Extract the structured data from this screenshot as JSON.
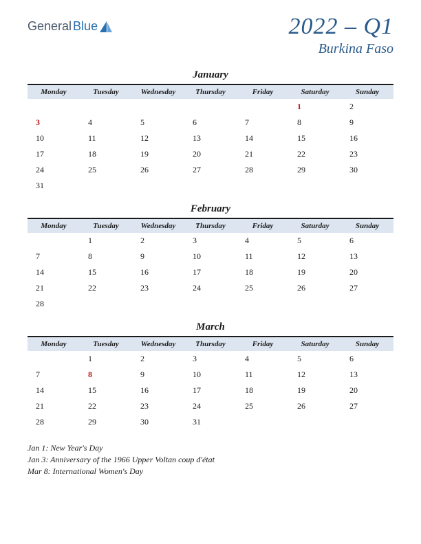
{
  "logo": {
    "general": "General",
    "blue": "Blue"
  },
  "title": {
    "quarter": "2022 – Q1",
    "country": "Burkina Faso"
  },
  "colors": {
    "header_bg": "#dce5f0",
    "header_border": "#1a1a1a",
    "text": "#1a1a1a",
    "holiday": "#c01818",
    "title_color": "#2a5a8a",
    "logo_gray": "#4a5a6a",
    "logo_blue": "#2a6fb0"
  },
  "day_headers": [
    "Monday",
    "Tuesday",
    "Wednesday",
    "Thursday",
    "Friday",
    "Saturday",
    "Sunday"
  ],
  "months": [
    {
      "name": "January",
      "weeks": [
        [
          "",
          "",
          "",
          "",
          "",
          "1",
          "2"
        ],
        [
          "3",
          "4",
          "5",
          "6",
          "7",
          "8",
          "9"
        ],
        [
          "10",
          "11",
          "12",
          "13",
          "14",
          "15",
          "16"
        ],
        [
          "17",
          "18",
          "19",
          "20",
          "21",
          "22",
          "23"
        ],
        [
          "24",
          "25",
          "26",
          "27",
          "28",
          "29",
          "30"
        ],
        [
          "31",
          "",
          "",
          "",
          "",
          "",
          ""
        ]
      ],
      "holidays": [
        "1",
        "3"
      ]
    },
    {
      "name": "February",
      "weeks": [
        [
          "",
          "1",
          "2",
          "3",
          "4",
          "5",
          "6"
        ],
        [
          "7",
          "8",
          "9",
          "10",
          "11",
          "12",
          "13"
        ],
        [
          "14",
          "15",
          "16",
          "17",
          "18",
          "19",
          "20"
        ],
        [
          "21",
          "22",
          "23",
          "24",
          "25",
          "26",
          "27"
        ],
        [
          "28",
          "",
          "",
          "",
          "",
          "",
          ""
        ]
      ],
      "holidays": []
    },
    {
      "name": "March",
      "weeks": [
        [
          "",
          "1",
          "2",
          "3",
          "4",
          "5",
          "6"
        ],
        [
          "7",
          "8",
          "9",
          "10",
          "11",
          "12",
          "13"
        ],
        [
          "14",
          "15",
          "16",
          "17",
          "18",
          "19",
          "20"
        ],
        [
          "21",
          "22",
          "23",
          "24",
          "25",
          "26",
          "27"
        ],
        [
          "28",
          "29",
          "30",
          "31",
          "",
          "",
          ""
        ]
      ],
      "holidays": [
        "8"
      ]
    }
  ],
  "holiday_notes": [
    "Jan 1: New Year's Day",
    "Jan 3: Anniversary of the 1966 Upper Voltan coup d'état",
    "Mar 8: International Women's Day"
  ]
}
